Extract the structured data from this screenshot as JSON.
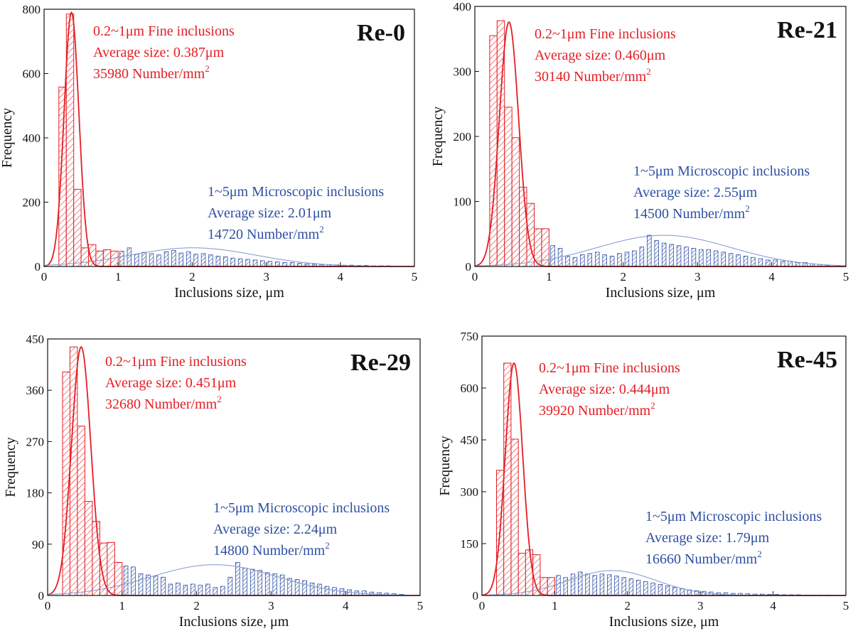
{
  "chart_data": [
    {
      "type": "bar",
      "title": "Re-0",
      "xlabel": "Inclusions size, μm",
      "ylabel": "Frequency",
      "xlim": [
        0,
        5
      ],
      "ylim": [
        0,
        800
      ],
      "xticks": [
        "0",
        "1",
        "2",
        "3",
        "4",
        "5"
      ],
      "yticks": [
        "0",
        "200",
        "400",
        "600",
        "800"
      ],
      "series": [
        {
          "name": "0.2~1μm Fine inclusions",
          "x": [
            0.25,
            0.35,
            0.45,
            0.55,
            0.65,
            0.75,
            0.85,
            0.95
          ],
          "values": [
            558,
            785,
            240,
            58,
            68,
            48,
            52,
            48
          ]
        },
        {
          "name": "1~5μm Microscopic inclusions",
          "x": [
            1.05,
            1.15,
            1.25,
            1.35,
            1.45,
            1.55,
            1.65,
            1.75,
            1.85,
            1.95,
            2.05,
            2.15,
            2.25,
            2.35,
            2.45,
            2.55,
            2.65,
            2.75,
            2.85,
            2.95,
            3.05,
            3.15,
            3.25,
            3.35,
            3.45,
            3.55,
            3.65,
            3.75,
            3.85,
            3.95,
            4.05,
            4.15,
            4.25,
            4.35,
            4.45,
            4.55,
            4.65,
            4.75
          ],
          "values": [
            48,
            58,
            38,
            44,
            40,
            36,
            46,
            50,
            42,
            46,
            38,
            40,
            36,
            32,
            30,
            26,
            24,
            22,
            20,
            18,
            16,
            14,
            12,
            12,
            10,
            8,
            7,
            6,
            6,
            5,
            4,
            4,
            3,
            3,
            2,
            2,
            2,
            1
          ]
        }
      ],
      "fits": [
        {
          "series": "0.2~1μm Fine inclusions",
          "mean": 0.37,
          "sigma": 0.1,
          "peak": 790
        },
        {
          "series": "1~5μm Microscopic inclusions",
          "mean": 2.01,
          "sigma": 0.85,
          "peak": 58
        }
      ],
      "annotations": {
        "fine": [
          "0.2~1μm Fine inclusions",
          "Average size: 0.387μm",
          "35980 Number/mm",
          "2"
        ],
        "micro": [
          "1~5μm Microscopic inclusions",
          "Average size: 2.01μm",
          "14720 Number/mm",
          "2"
        ]
      }
    },
    {
      "type": "bar",
      "title": "Re-21",
      "xlabel": "Inclusions size, μm",
      "ylabel": "Frequency",
      "xlim": [
        0,
        5
      ],
      "ylim": [
        0,
        400
      ],
      "xticks": [
        "0",
        "1",
        "2",
        "3",
        "4",
        "5"
      ],
      "yticks": [
        "0",
        "100",
        "200",
        "300",
        "400"
      ],
      "series": [
        {
          "name": "0.2~1μm Fine inclusions",
          "x": [
            0.25,
            0.35,
            0.45,
            0.55,
            0.65,
            0.75,
            0.85,
            0.95
          ],
          "values": [
            355,
            378,
            245,
            198,
            122,
            97,
            58,
            58
          ]
        },
        {
          "name": "1~5μm Microscopic inclusions",
          "x": [
            1.05,
            1.15,
            1.25,
            1.35,
            1.45,
            1.55,
            1.65,
            1.75,
            1.85,
            1.95,
            2.05,
            2.15,
            2.25,
            2.35,
            2.45,
            2.55,
            2.65,
            2.75,
            2.85,
            2.95,
            3.05,
            3.15,
            3.25,
            3.35,
            3.45,
            3.55,
            3.65,
            3.75,
            3.85,
            3.95,
            4.05,
            4.15,
            4.25,
            4.35,
            4.45,
            4.55,
            4.65,
            4.75
          ],
          "values": [
            32,
            28,
            16,
            14,
            18,
            20,
            22,
            18,
            16,
            20,
            22,
            24,
            30,
            48,
            40,
            36,
            34,
            32,
            30,
            28,
            26,
            26,
            24,
            22,
            20,
            18,
            16,
            14,
            12,
            10,
            10,
            8,
            8,
            6,
            6,
            4,
            3,
            2
          ]
        }
      ],
      "fits": [
        {
          "series": "0.2~1μm Fine inclusions",
          "mean": 0.46,
          "sigma": 0.13,
          "peak": 376
        },
        {
          "series": "1~5μm Microscopic inclusions",
          "mean": 2.55,
          "sigma": 0.9,
          "peak": 48
        }
      ],
      "annotations": {
        "fine": [
          "0.2~1μm Fine inclusions",
          "Average size: 0.460μm",
          "30140 Number/mm",
          "2"
        ],
        "micro": [
          "1~5μm Microscopic inclusions",
          "Average size: 2.55μm",
          "14500 Number/mm",
          "2"
        ]
      }
    },
    {
      "type": "bar",
      "title": "Re-29",
      "xlabel": "Inclusions size, μm",
      "ylabel": "Frequency",
      "xlim": [
        0,
        5
      ],
      "ylim": [
        0,
        450
      ],
      "xticks": [
        "0",
        "1",
        "2",
        "3",
        "4",
        "5"
      ],
      "yticks": [
        "0",
        "90",
        "180",
        "270",
        "360",
        "450"
      ],
      "series": [
        {
          "name": "0.2~1μm Fine inclusions",
          "x": [
            0.25,
            0.35,
            0.45,
            0.55,
            0.65,
            0.75,
            0.85,
            0.95
          ],
          "values": [
            392,
            436,
            297,
            165,
            130,
            92,
            93,
            58
          ]
        },
        {
          "name": "1~5μm Microscopic inclusions",
          "x": [
            1.05,
            1.15,
            1.25,
            1.35,
            1.45,
            1.55,
            1.65,
            1.75,
            1.85,
            1.95,
            2.05,
            2.15,
            2.25,
            2.35,
            2.45,
            2.55,
            2.65,
            2.75,
            2.85,
            2.95,
            3.05,
            3.15,
            3.25,
            3.35,
            3.45,
            3.55,
            3.65,
            3.75,
            3.85,
            3.95,
            4.05,
            4.15,
            4.25,
            4.35,
            4.45,
            4.55,
            4.65,
            4.75
          ],
          "values": [
            52,
            50,
            38,
            36,
            34,
            32,
            20,
            22,
            18,
            20,
            18,
            20,
            14,
            16,
            32,
            58,
            48,
            46,
            44,
            40,
            38,
            36,
            30,
            28,
            26,
            22,
            20,
            16,
            14,
            12,
            10,
            8,
            8,
            6,
            5,
            4,
            3,
            2
          ]
        }
      ],
      "fits": [
        {
          "series": "0.2~1μm Fine inclusions",
          "mean": 0.45,
          "sigma": 0.13,
          "peak": 436
        },
        {
          "series": "1~5μm Microscopic inclusions",
          "mean": 2.24,
          "sigma": 0.85,
          "peak": 54
        }
      ],
      "annotations": {
        "fine": [
          "0.2~1μm Fine inclusions",
          "Average size: 0.451μm",
          "32680 Number/mm",
          "2"
        ],
        "micro": [
          "1~5μm Microscopic inclusions",
          "Average size: 2.24μm",
          "14800 Number/mm",
          "2"
        ]
      }
    },
    {
      "type": "bar",
      "title": "Re-45",
      "xlabel": "Inclusions size, μm",
      "ylabel": "Frequency",
      "xlim": [
        0,
        5
      ],
      "ylim": [
        0,
        750
      ],
      "xticks": [
        "0",
        "1",
        "2",
        "3",
        "4",
        "5"
      ],
      "yticks": [
        "0",
        "150",
        "300",
        "450",
        "600",
        "750"
      ],
      "series": [
        {
          "name": "0.2~1μm Fine inclusions",
          "x": [
            0.25,
            0.35,
            0.45,
            0.55,
            0.65,
            0.75,
            0.85,
            0.95
          ],
          "values": [
            362,
            672,
            452,
            122,
            132,
            118,
            52,
            52
          ]
        },
        {
          "name": "1~5μm Microscopic inclusions",
          "x": [
            1.05,
            1.15,
            1.25,
            1.35,
            1.45,
            1.55,
            1.65,
            1.75,
            1.85,
            1.95,
            2.05,
            2.15,
            2.25,
            2.35,
            2.45,
            2.55,
            2.65,
            2.75,
            2.85,
            2.95,
            3.05,
            3.15,
            3.25,
            3.35,
            3.45,
            3.55,
            3.65,
            3.75,
            3.85,
            3.95,
            4.05,
            4.15,
            4.25,
            4.35,
            4.45,
            4.55,
            4.65,
            4.75
          ],
          "values": [
            58,
            52,
            62,
            68,
            62,
            58,
            62,
            60,
            56,
            52,
            48,
            44,
            40,
            36,
            32,
            28,
            24,
            20,
            16,
            14,
            12,
            10,
            8,
            8,
            6,
            6,
            5,
            4,
            4,
            3,
            3,
            2,
            2,
            2,
            1,
            1,
            1,
            1
          ]
        }
      ],
      "fits": [
        {
          "series": "0.2~1μm Fine inclusions",
          "mean": 0.44,
          "sigma": 0.12,
          "peak": 672
        },
        {
          "series": "1~5μm Microscopic inclusions",
          "mean": 1.79,
          "sigma": 0.6,
          "peak": 72
        }
      ],
      "annotations": {
        "fine": [
          "0.2~1μm Fine inclusions",
          "Average size: 0.444μm",
          "39920 Number/mm",
          "2"
        ],
        "micro": [
          "1~5μm Microscopic inclusions",
          "Average size: 1.79μm",
          "16660 Number/mm",
          "2"
        ]
      }
    }
  ],
  "colors": {
    "fine": "#e31e24",
    "micro": "#2e4fa3",
    "micro_fit": "#7f95cf",
    "axis": "#111111"
  }
}
